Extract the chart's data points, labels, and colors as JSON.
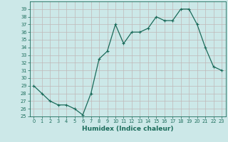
{
  "x": [
    0,
    1,
    2,
    3,
    4,
    5,
    6,
    7,
    8,
    9,
    10,
    11,
    12,
    13,
    14,
    15,
    16,
    17,
    18,
    19,
    20,
    21,
    22,
    23
  ],
  "y": [
    29,
    28,
    27,
    26.5,
    26.5,
    26,
    25.2,
    28,
    32.5,
    33.5,
    37,
    34.5,
    36,
    36,
    36.5,
    38,
    37.5,
    37.5,
    39,
    39,
    37,
    34,
    31.5,
    31
  ],
  "xlabel": "Humidex (Indice chaleur)",
  "ylim": [
    25,
    40
  ],
  "xlim": [
    -0.5,
    23.5
  ],
  "yticks": [
    25,
    26,
    27,
    28,
    29,
    30,
    31,
    32,
    33,
    34,
    35,
    36,
    37,
    38,
    39
  ],
  "xticks": [
    0,
    1,
    2,
    3,
    4,
    5,
    6,
    7,
    8,
    9,
    10,
    11,
    12,
    13,
    14,
    15,
    16,
    17,
    18,
    19,
    20,
    21,
    22,
    23
  ],
  "line_color": "#1a6b5a",
  "bg_color": "#cce8e8",
  "grid_major_color": "#c0b8b8",
  "marker": "+",
  "markersize": 3.5,
  "linewidth": 0.9,
  "tick_label_fontsize": 4.8,
  "xlabel_fontsize": 6.5
}
